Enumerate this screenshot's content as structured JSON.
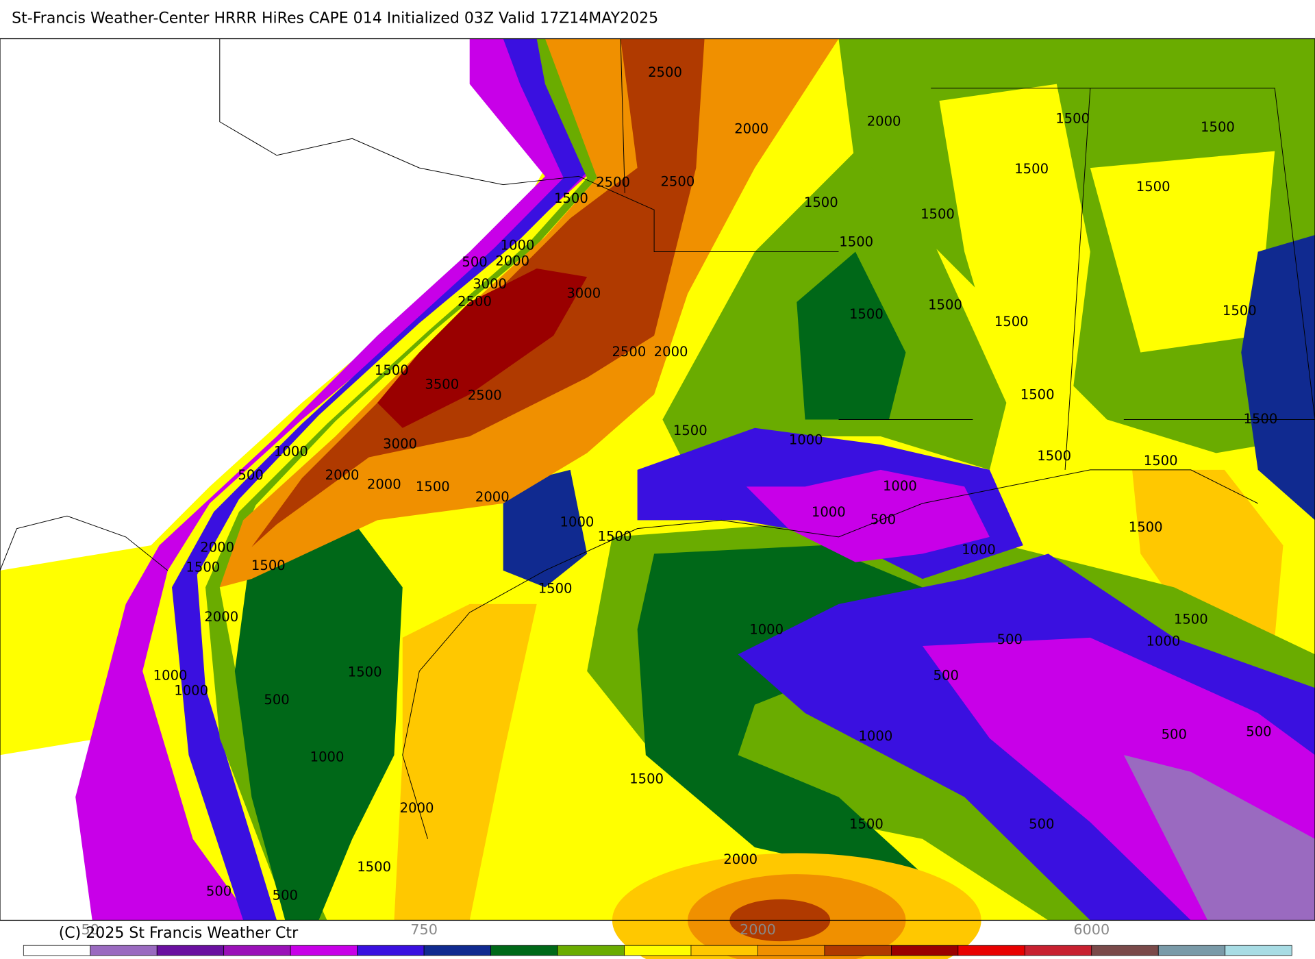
{
  "header": {
    "title": "St-Francis Weather-Center HRRR HiRes CAPE  014 Initialized  03Z Valid 17Z14MAY2025"
  },
  "contour_labels": [
    "2500",
    "2000",
    "2000",
    "1500",
    "1500",
    "1500",
    "2500",
    "2500",
    "1500",
    "1500",
    "1500",
    "1500",
    "1000",
    "1500",
    "500",
    "2000",
    "3000",
    "3000",
    "2500",
    "1500",
    "1500",
    "1500",
    "1500",
    "2500",
    "2000",
    "1500",
    "3500",
    "2500",
    "1500",
    "1500",
    "1500",
    "1000",
    "3000",
    "1000",
    "1500",
    "1500",
    "500",
    "2000",
    "2000",
    "1500",
    "2000",
    "1000",
    "1000",
    "500",
    "1000",
    "1500",
    "1500",
    "1000",
    "2000",
    "1500",
    "1500",
    "1500",
    "2000",
    "1000",
    "1500",
    "500",
    "1000",
    "1500",
    "500",
    "1000",
    "1000",
    "500",
    "1000",
    "500",
    "500",
    "1000",
    "1500",
    "2000",
    "1500",
    "500",
    "2000",
    "1500",
    "500",
    "500"
  ],
  "colorbar": {
    "colors": [
      "#ffffff",
      "#9a6ac0",
      "#6a10a0",
      "#9a10b8",
      "#c800e8",
      "#3a10e0",
      "#102a90",
      "#006818",
      "#6aac00",
      "#ffff00",
      "#ffc800",
      "#f09000",
      "#b03a00",
      "#9a0000",
      "#e80000",
      "#c82030",
      "#7a4a4a",
      "#7a9aa8",
      "#a8dce4"
    ],
    "labels": [
      "50",
      "750",
      "2000",
      "6000"
    ]
  },
  "footer": {
    "copyright": "(C) 2025 St Francis Weather Ctr"
  }
}
